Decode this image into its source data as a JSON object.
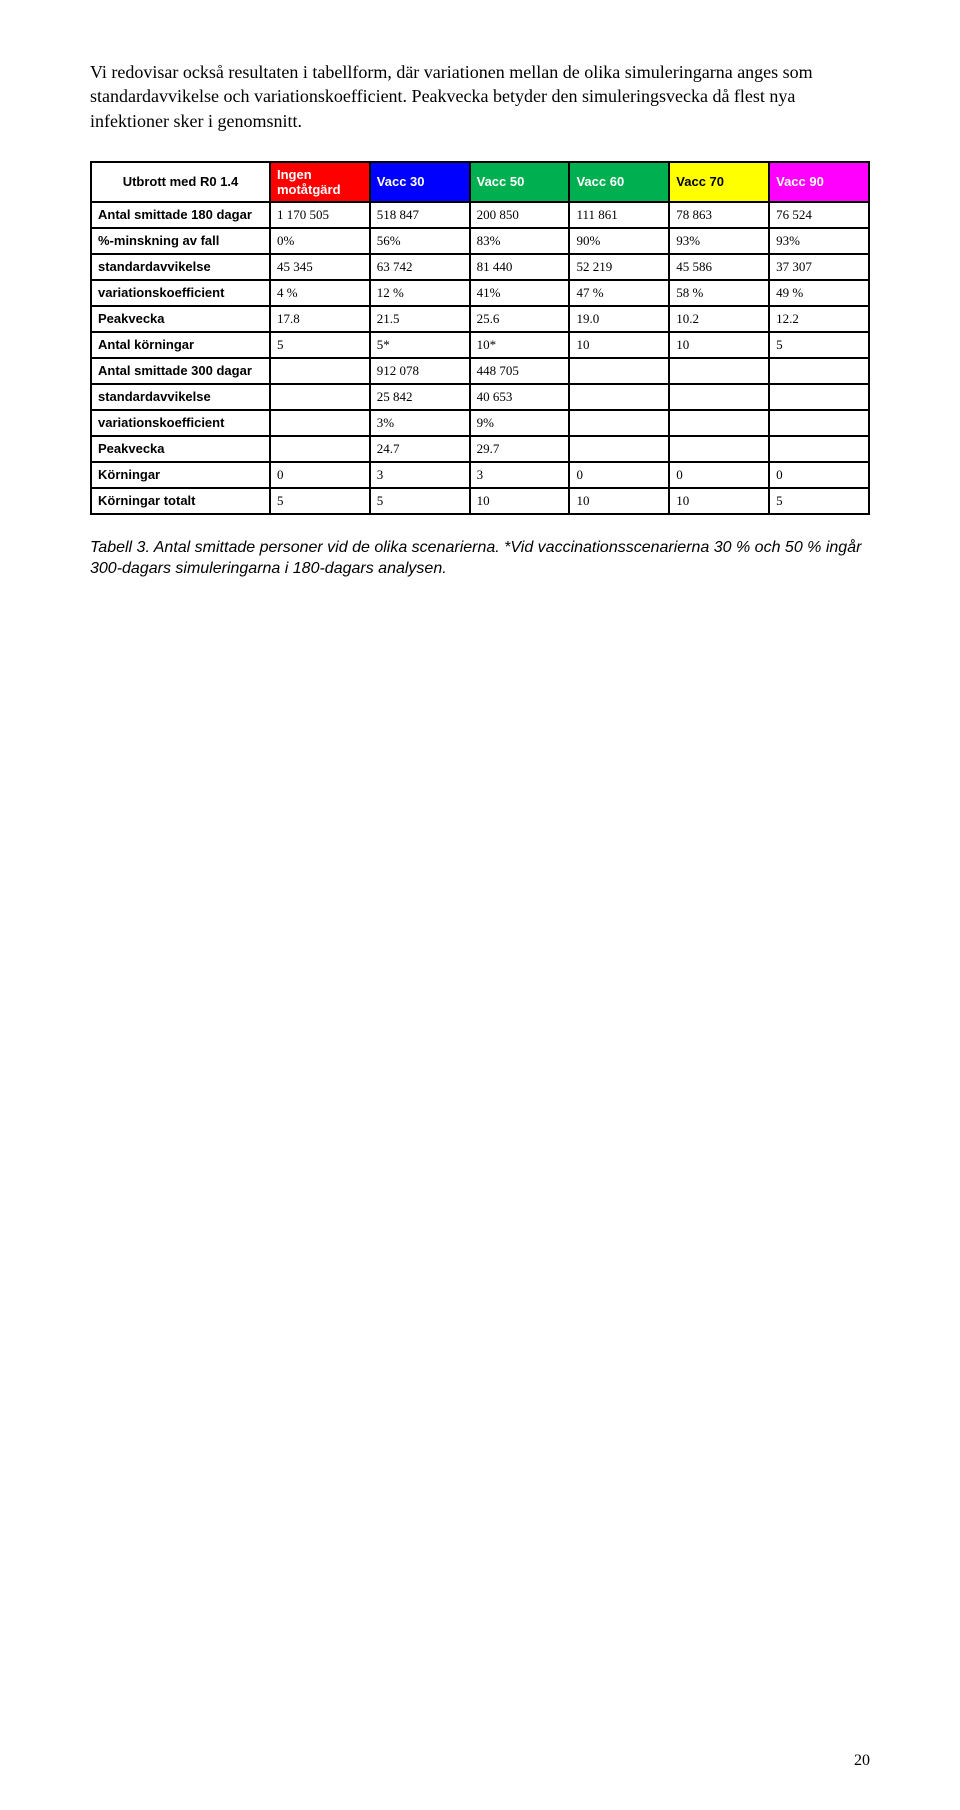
{
  "intro": "Vi redovisar också resultaten i tabellform, där variationen mellan de olika simuleringarna anges som standardavvikelse och variationskoefficient. Peakvecka betyder den simuleringsvecka då flest nya infektioner sker i genomsnitt.",
  "table": {
    "header": {
      "label": "Utbrott med  R0 1.4",
      "cells": [
        {
          "text": "Ingen motåtgärd",
          "bg": "#ff0000",
          "fg": "#ffffff"
        },
        {
          "text": "Vacc 30",
          "bg": "#0000ff",
          "fg": "#ffffff"
        },
        {
          "text": "Vacc 50",
          "bg": "#00b050",
          "fg": "#ffffff"
        },
        {
          "text": "Vacc 60",
          "bg": "#00b050",
          "fg": "#ffffff"
        },
        {
          "text": "Vacc 70",
          "bg": "#ffff00",
          "fg": "#000000"
        },
        {
          "text": "Vacc 90",
          "bg": "#ff00ff",
          "fg": "#ffffff"
        }
      ]
    },
    "rows": [
      {
        "label": "Antal smittade 180 dagar",
        "cells": [
          "1 170 505",
          "518 847",
          "200 850",
          "111 861",
          "78 863",
          "76 524"
        ]
      },
      {
        "label": "%-minskning av fall",
        "cells": [
          "0%",
          "56%",
          "83%",
          "90%",
          "93%",
          "93%"
        ]
      },
      {
        "label": "standardavvikelse",
        "cells": [
          "45 345",
          "63 742",
          "81 440",
          "52 219",
          "45 586",
          "37 307"
        ]
      },
      {
        "label": "variationskoefficient",
        "cells": [
          "4 %",
          "12 %",
          "41%",
          "47 %",
          "58 %",
          "49 %"
        ]
      },
      {
        "label": "Peakvecka",
        "cells": [
          "17.8",
          "21.5",
          "25.6",
          "19.0",
          "10.2",
          "12.2"
        ]
      },
      {
        "label": "Antal körningar",
        "cells": [
          "5",
          "5*",
          "10*",
          "10",
          "10",
          "5"
        ]
      },
      {
        "label": "Antal smittade 300 dagar",
        "cells": [
          "",
          "912 078",
          "448 705",
          "",
          "",
          ""
        ]
      },
      {
        "label": "standardavvikelse",
        "cells": [
          "",
          "25 842",
          "40 653",
          "",
          "",
          ""
        ]
      },
      {
        "label": "variationskoefficient",
        "cells": [
          "",
          "3%",
          "9%",
          "",
          "",
          ""
        ]
      },
      {
        "label": "Peakvecka",
        "cells": [
          "",
          "24.7",
          "29.7",
          "",
          "",
          ""
        ]
      },
      {
        "label": "Körningar",
        "cells": [
          "0",
          "3",
          "3",
          "0",
          "0",
          "0"
        ]
      },
      {
        "label": "Körningar totalt",
        "cells": [
          "5",
          "5",
          "10",
          "10",
          "10",
          "5"
        ]
      }
    ]
  },
  "caption": "Tabell 3. Antal smittade personer vid de olika scenarierna. *Vid vaccinationsscenarierna 30 % och 50 % ingår 300-dagars simuleringarna i 180-dagars analysen.",
  "page_number": "20"
}
